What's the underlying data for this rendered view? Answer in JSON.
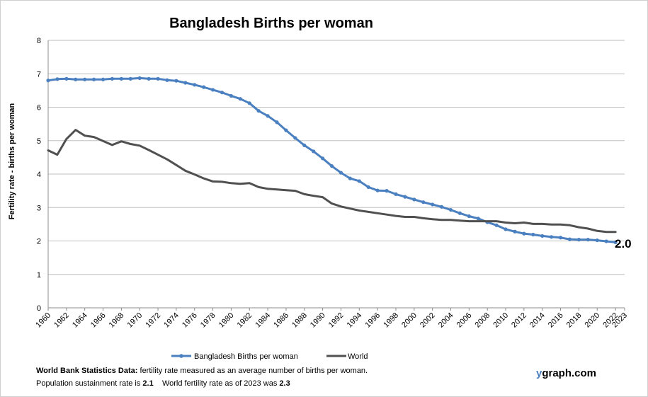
{
  "chart_data": {
    "type": "line",
    "title": "Bangladesh Births per woman",
    "xlabel": "",
    "ylabel": "Fertility rate  - births per woman",
    "ylim": [
      0,
      8
    ],
    "yticks": [
      0,
      1,
      2,
      3,
      4,
      5,
      6,
      7,
      8
    ],
    "xlim": [
      1960,
      2023
    ],
    "xticks": [
      1960,
      1962,
      1964,
      1966,
      1968,
      1970,
      1972,
      1974,
      1976,
      1978,
      1980,
      1982,
      1984,
      1986,
      1988,
      1990,
      1992,
      1994,
      1996,
      1998,
      2000,
      2002,
      2004,
      2006,
      2008,
      2010,
      2012,
      2014,
      2016,
      2018,
      2020,
      2022,
      2023
    ],
    "grid": true,
    "legend_position": "bottom",
    "end_label": "2.0",
    "series": [
      {
        "name": "Bangladesh Births per woman",
        "color": "#4a7fc0",
        "markers": true,
        "x": [
          1960,
          1961,
          1962,
          1963,
          1964,
          1965,
          1966,
          1967,
          1968,
          1969,
          1970,
          1971,
          1972,
          1973,
          1974,
          1975,
          1976,
          1977,
          1978,
          1979,
          1980,
          1981,
          1982,
          1983,
          1984,
          1985,
          1986,
          1987,
          1988,
          1989,
          1990,
          1991,
          1992,
          1993,
          1994,
          1995,
          1996,
          1997,
          1998,
          1999,
          2000,
          2001,
          2002,
          2003,
          2004,
          2005,
          2006,
          2007,
          2008,
          2009,
          2010,
          2011,
          2012,
          2013,
          2014,
          2015,
          2016,
          2017,
          2018,
          2019,
          2020,
          2021,
          2022
        ],
        "y": [
          6.8,
          6.84,
          6.85,
          6.83,
          6.83,
          6.83,
          6.83,
          6.85,
          6.85,
          6.85,
          6.87,
          6.85,
          6.85,
          6.81,
          6.79,
          6.73,
          6.67,
          6.6,
          6.52,
          6.44,
          6.34,
          6.25,
          6.12,
          5.89,
          5.74,
          5.55,
          5.31,
          5.08,
          4.86,
          4.68,
          4.47,
          4.24,
          4.04,
          3.87,
          3.79,
          3.61,
          3.51,
          3.5,
          3.4,
          3.32,
          3.24,
          3.16,
          3.09,
          3.02,
          2.93,
          2.83,
          2.74,
          2.67,
          2.56,
          2.47,
          2.35,
          2.28,
          2.22,
          2.19,
          2.15,
          2.12,
          2.1,
          2.05,
          2.04,
          2.04,
          2.02,
          1.99,
          1.96
        ]
      },
      {
        "name": "World",
        "color": "#505050",
        "markers": false,
        "x": [
          1960,
          1961,
          1962,
          1963,
          1964,
          1965,
          1966,
          1967,
          1968,
          1969,
          1970,
          1971,
          1972,
          1973,
          1974,
          1975,
          1976,
          1977,
          1978,
          1979,
          1980,
          1981,
          1982,
          1983,
          1984,
          1985,
          1986,
          1987,
          1988,
          1989,
          1990,
          1991,
          1992,
          1993,
          1994,
          1995,
          1996,
          1997,
          1998,
          1999,
          2000,
          2001,
          2002,
          2003,
          2004,
          2005,
          2006,
          2007,
          2008,
          2009,
          2010,
          2011,
          2012,
          2013,
          2014,
          2015,
          2016,
          2017,
          2018,
          2019,
          2020,
          2021,
          2022
        ],
        "y": [
          4.71,
          4.58,
          5.05,
          5.32,
          5.15,
          5.11,
          4.99,
          4.87,
          4.98,
          4.9,
          4.85,
          4.72,
          4.58,
          4.44,
          4.27,
          4.1,
          3.99,
          3.87,
          3.78,
          3.77,
          3.73,
          3.71,
          3.73,
          3.61,
          3.56,
          3.54,
          3.52,
          3.5,
          3.4,
          3.35,
          3.31,
          3.12,
          3.03,
          2.97,
          2.91,
          2.87,
          2.83,
          2.79,
          2.75,
          2.72,
          2.72,
          2.68,
          2.65,
          2.63,
          2.63,
          2.61,
          2.59,
          2.59,
          2.59,
          2.59,
          2.55,
          2.53,
          2.55,
          2.51,
          2.51,
          2.49,
          2.49,
          2.47,
          2.41,
          2.37,
          2.3,
          2.27,
          2.27
        ]
      }
    ]
  },
  "footnote": {
    "line1_bold": "World Bank Statistics Data:",
    "line1_text": " fertility rate measured as an average number  of births per woman.",
    "line2_a": "Population sustainment rate is ",
    "line2_b": "2.1",
    "line2_c": "    World fertility rate as of 2023 was ",
    "line2_d": "2.3"
  },
  "brand": {
    "accent": "y",
    "rest": "graph.com"
  }
}
